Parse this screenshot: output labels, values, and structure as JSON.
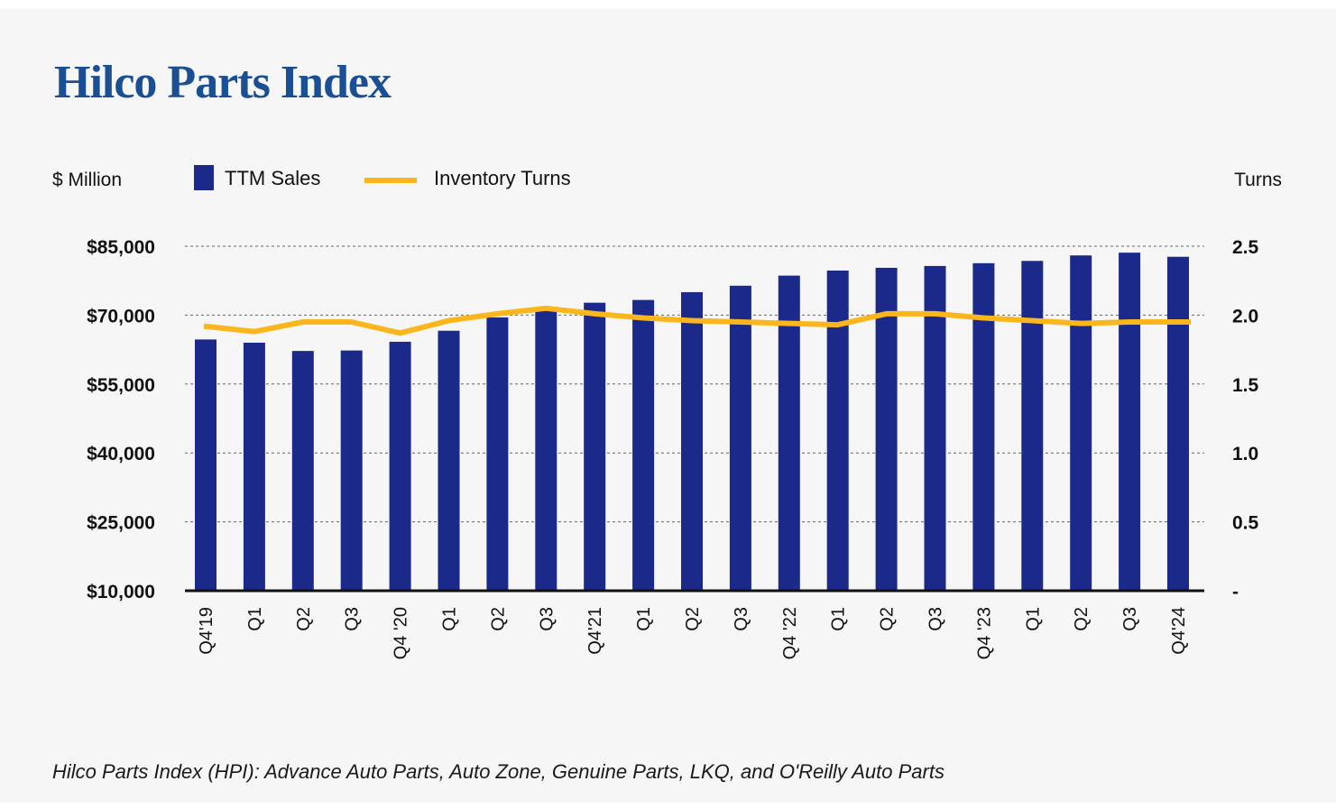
{
  "title": "Hilco Parts Index",
  "footnote": "Hilco Parts Index (HPI): Advance Auto Parts, Auto Zone, Genuine Parts, LKQ, and O'Reilly Auto Parts",
  "colors": {
    "bars": "#1b2a8a",
    "line": "#fbb61c",
    "title": "#1b4f93",
    "grid": "#666666"
  },
  "chart_data": {
    "type": "bar+line",
    "title": "Hilco Parts Index",
    "left_axis": {
      "unit_label": "$ Million",
      "range": [
        10000,
        85000
      ],
      "ticks": [
        10000,
        25000,
        40000,
        55000,
        70000,
        85000
      ],
      "tick_labels": [
        "$10,000",
        "$25,000",
        "$40,000",
        "$55,000",
        "$70,000",
        "$85,000"
      ]
    },
    "right_axis": {
      "unit_label": "Turns",
      "range": [
        0,
        2.5
      ],
      "ticks": [
        0,
        0.5,
        1.0,
        1.5,
        2.0,
        2.5
      ],
      "tick_labels": [
        "-",
        "0.5",
        "1.0",
        "1.5",
        "2.0",
        "2.5"
      ]
    },
    "legend": {
      "bars_label": "TTM Sales",
      "line_label": "Inventory Turns",
      "placement": "top-left"
    },
    "grid": true,
    "categories": [
      "Q4'19",
      "Q1",
      "Q2",
      "Q3",
      "Q4 '20",
      "Q1",
      "Q2",
      "Q3",
      "Q4'21",
      "Q1",
      "Q2",
      "Q3",
      "Q4 '22",
      "Q1",
      "Q2",
      "Q3",
      "Q4 '23",
      "Q1",
      "Q2",
      "Q3",
      "Q4'24"
    ],
    "series": [
      {
        "name": "TTM Sales",
        "type": "bar",
        "axis": "left",
        "values": [
          64700,
          64000,
          62200,
          62300,
          64200,
          66600,
          69500,
          71100,
          72700,
          73300,
          75000,
          76400,
          78600,
          79700,
          80300,
          80700,
          81300,
          81800,
          83000,
          83600,
          82700
        ]
      },
      {
        "name": "Inventory Turns",
        "type": "line",
        "axis": "right",
        "values": [
          1.92,
          1.88,
          1.95,
          1.95,
          1.87,
          1.96,
          2.01,
          2.05,
          2.01,
          1.98,
          1.96,
          1.95,
          1.94,
          1.93,
          2.01,
          2.01,
          1.98,
          1.96,
          1.94,
          1.95,
          1.95
        ]
      }
    ]
  }
}
